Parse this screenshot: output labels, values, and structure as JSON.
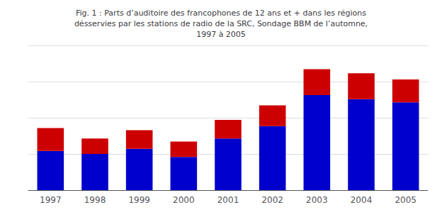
{
  "chart_data": {
    "type": "bar",
    "title": "Fig. 1 : Parts d’auditoire des francophones de 12 ans et + dans les régions\ndésservies par les stations de radio de la SRC, Sondage BBM de l’automne,\n1997 à 2005",
    "categories": [
      "1997",
      "1998",
      "1999",
      "2000",
      "2001",
      "2002",
      "2003",
      "2004",
      "2005"
    ],
    "series": [
      {
        "color": "#0000cc",
        "values": [
          3.8,
          3.5,
          4.0,
          3.2,
          5.0,
          6.2,
          9.2,
          8.8,
          8.5
        ]
      },
      {
        "color": "#cc0000",
        "values": [
          2.2,
          1.5,
          1.8,
          1.5,
          1.8,
          2.0,
          2.5,
          2.5,
          2.2
        ]
      }
    ],
    "stacked": true,
    "ylim": [
      0,
      14
    ],
    "yticks": [
      0,
      3.5,
      7,
      10.5,
      14
    ],
    "grid": true,
    "tick_labels": "x"
  }
}
